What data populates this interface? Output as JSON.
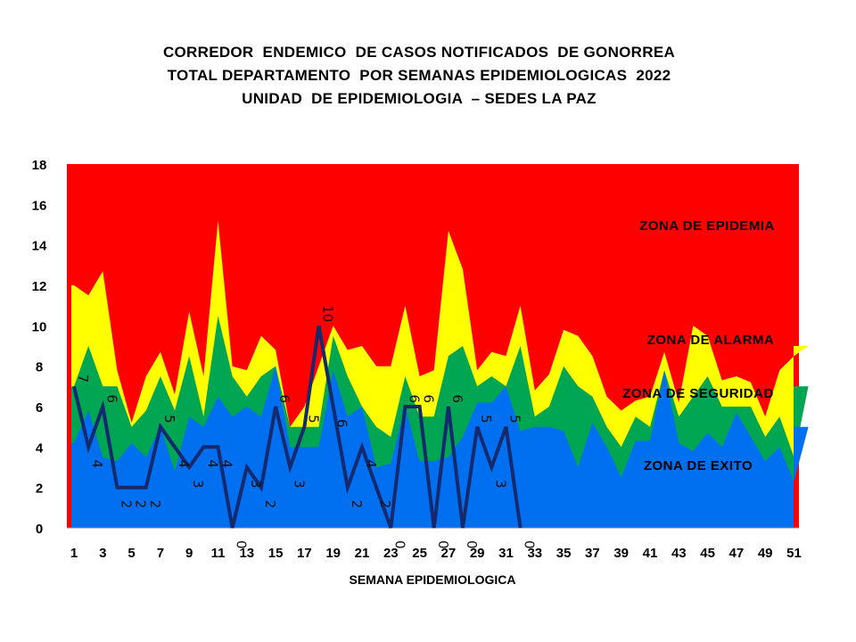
{
  "chart_data": {
    "type": "area",
    "title": [
      "CORREDOR  ENDEMICO  DE CASOS NOTIFICADOS  DE GONORREA",
      "TOTAL DEPARTAMENTO  POR SEMANAS EPIDEMIOLOGICAS  2022",
      "UNIDAD  DE EPIDEMIOLOGIA  – SEDES LA PAZ"
    ],
    "xlabel": "SEMANA EPIDEMIOLOGICA",
    "ylabel": "",
    "ylim": [
      0,
      18
    ],
    "yticks": [
      0,
      2,
      4,
      6,
      8,
      10,
      12,
      14,
      16,
      18
    ],
    "x": [
      1,
      2,
      3,
      4,
      5,
      6,
      7,
      8,
      9,
      10,
      11,
      12,
      13,
      14,
      15,
      16,
      17,
      18,
      19,
      20,
      21,
      22,
      23,
      24,
      25,
      26,
      27,
      28,
      29,
      30,
      31,
      32,
      33,
      34,
      35,
      36,
      37,
      38,
      39,
      40,
      41,
      42,
      43,
      44,
      45,
      46,
      47,
      48,
      49,
      50,
      51,
      52
    ],
    "xtick_labels": [
      1,
      3,
      5,
      7,
      9,
      11,
      13,
      15,
      17,
      19,
      21,
      23,
      25,
      27,
      29,
      31,
      33,
      35,
      37,
      39,
      41,
      43,
      45,
      47,
      49,
      51
    ],
    "zones": [
      {
        "name": "ZONA DE EPIDEMIA",
        "color": "#ff0000",
        "top": 18
      },
      {
        "name": "ZONA DE ALARMA",
        "color": "#ffff00",
        "values": [
          12,
          11.5,
          12.7,
          7.8,
          5.2,
          7.5,
          8.7,
          6.6,
          10.7,
          7.5,
          15.2,
          8,
          7.8,
          9.5,
          8.8,
          5,
          6,
          8,
          10,
          8.8,
          9,
          8,
          8,
          11,
          7.5,
          7.8,
          14.7,
          12.8,
          7.8,
          8.7,
          8.5,
          11,
          6.8,
          7.6,
          9.8,
          9.5,
          8.5,
          6.5,
          5.8,
          6.3,
          6.5,
          8.7,
          6.2,
          10,
          9.5,
          7.3,
          7.5,
          7.2,
          5.5,
          7.8,
          8.5,
          9
        ]
      },
      {
        "name": "ZONA DE  SEGURIDAD",
        "color": "#00a651",
        "values": [
          7,
          9,
          7,
          7,
          5,
          5.8,
          7.5,
          5.8,
          8.5,
          5.5,
          10.5,
          7.5,
          6.5,
          7.5,
          8,
          5,
          5,
          5,
          9.5,
          7.5,
          6,
          5,
          4.5,
          7.5,
          5.5,
          5.5,
          8.5,
          9,
          7,
          7.5,
          7,
          9,
          5.5,
          6,
          8,
          7,
          6.5,
          5,
          4,
          5.5,
          5,
          7.8,
          5.5,
          6.5,
          7.5,
          6,
          6,
          6,
          4.5,
          5.5,
          3.5,
          7
        ]
      },
      {
        "name": "ZONA DE  EXITO",
        "color": "#0070f0",
        "values": [
          4.2,
          5.8,
          3.5,
          3.3,
          4.2,
          3.5,
          5,
          2.8,
          5.5,
          5,
          6.5,
          5.5,
          6,
          5.5,
          8,
          4,
          4,
          4,
          7.8,
          5.5,
          6,
          3,
          3.2,
          6,
          3.3,
          3.3,
          3.5,
          4.5,
          6.2,
          6.2,
          7,
          4.8,
          5,
          5,
          4.8,
          3,
          5.2,
          4,
          2.5,
          4.3,
          4.3,
          7.8,
          4.2,
          3.8,
          4.7,
          4,
          5.7,
          4.5,
          3.3,
          4,
          2.3,
          5
        ]
      }
    ],
    "series": [
      {
        "name": "",
        "color": "#152a6e",
        "x": [
          1,
          2,
          3,
          4,
          5,
          6,
          7,
          8,
          9,
          10,
          11,
          12,
          13,
          14,
          15,
          16,
          17,
          18,
          19,
          20,
          21,
          22,
          23,
          24,
          25,
          26,
          27,
          28,
          29,
          30,
          31,
          32
        ],
        "values": [
          7,
          4,
          6,
          2,
          2,
          2,
          5,
          4,
          3,
          4,
          4,
          0,
          3,
          2,
          6,
          3,
          5,
          10,
          6,
          2,
          4,
          2,
          0,
          6,
          6,
          0,
          6,
          0,
          5,
          3,
          5,
          0
        ],
        "labels": [
          "7",
          "4",
          "6",
          "2",
          "2",
          "2",
          "5",
          "4",
          "3",
          "4",
          "4",
          "0",
          "3",
          "2",
          "6",
          "3",
          "5",
          "10",
          "6",
          "2",
          "4",
          "2",
          "0",
          "6",
          "6",
          "0",
          "6",
          "0",
          "5",
          "3",
          "5",
          "0"
        ]
      }
    ]
  }
}
